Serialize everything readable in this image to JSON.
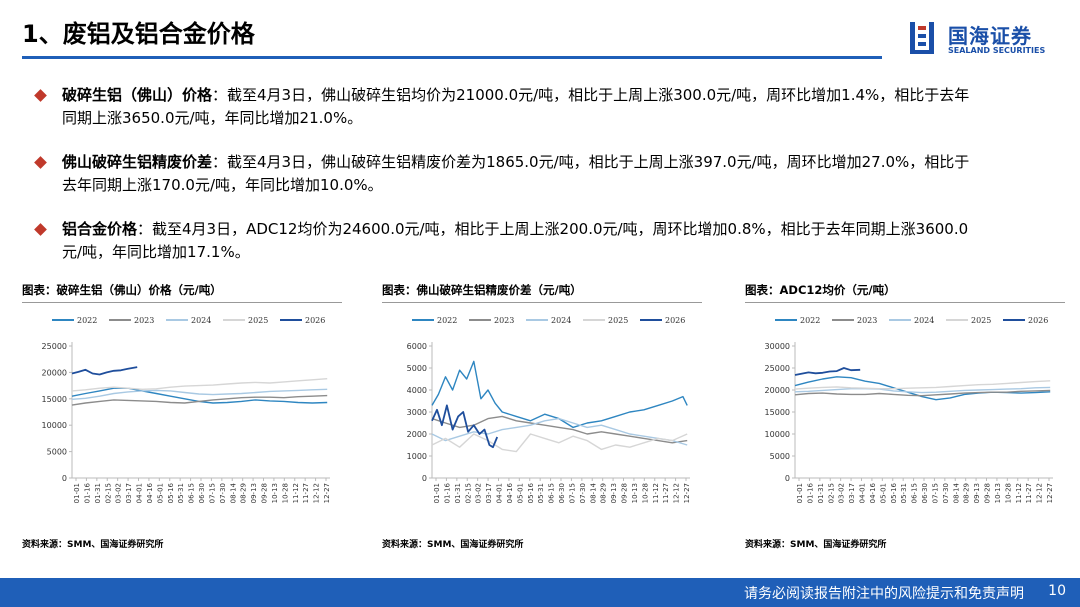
{
  "header": {
    "title": "1、废铝及铝合金价格"
  },
  "logo": {
    "cn": "国海证券",
    "en": "SEALAND SECURITIES"
  },
  "bullets": [
    {
      "head": "破碎生铝（佛山）价格",
      "text": "：截至4月3日，佛山破碎生铝均价为21000.0元/吨，相比于上周上涨300.0元/吨，周环比增加1.4%，相比于去年同期上涨3650.0元/吨，年同比增加21.0%。"
    },
    {
      "head": "佛山破碎生铝精废价差",
      "text": "：截至4月3日，佛山破碎生铝精废价差为1865.0元/吨，相比于上周上涨397.0元/吨，周环比增加27.0%，相比于去年同期上涨170.0元/吨，年同比增加10.0%。"
    },
    {
      "head": "铝合金价格",
      "text": "：截至4月3日，ADC12均价为24600.0元/吨，相比于上周上涨200.0元/吨，周环比增加0.8%，相比于去年同期上涨3600.0元/吨，年同比增加17.1%。"
    }
  ],
  "footer": {
    "text": "请务必阅读报告附注中的风险提示和免责声明",
    "page": "10"
  },
  "colors": {
    "2022": "#2e86c1",
    "2023": "#8c8c8c",
    "2024": "#a9c9e3",
    "2025": "#d6d6d6",
    "2026": "#1f4e9c"
  },
  "chart_data": [
    {
      "type": "line",
      "title": "图表：破碎生铝（佛山）价格（元/吨）",
      "source": "资料来源：SMM、国海证券研究所",
      "ylim": [
        0,
        25000
      ],
      "yticks": [
        "0",
        "5000",
        "10000",
        "15000",
        "20000",
        "25000"
      ],
      "xticks": [
        "01-01",
        "01-16",
        "01-31",
        "02-15",
        "03-02",
        "03-17",
        "04-01",
        "04-16",
        "05-01",
        "05-16",
        "05-31",
        "06-15",
        "06-30",
        "07-15",
        "07-30",
        "08-14",
        "08-29",
        "09-13",
        "09-28",
        "10-13",
        "10-28",
        "11-12",
        "11-27",
        "12-12",
        "12-27"
      ],
      "legend": [
        "2022",
        "2023",
        "2024",
        "2025",
        "2026"
      ],
      "legend_position": "top",
      "series": [
        {
          "name": "2022",
          "x": [
            1,
            20,
            40,
            60,
            80,
            100,
            120,
            140,
            160,
            180,
            200,
            220,
            240,
            260,
            280,
            300,
            320,
            340,
            361
          ],
          "y": [
            15500,
            16000,
            16500,
            17000,
            17000,
            16500,
            16000,
            15500,
            15000,
            14500,
            14200,
            14300,
            14500,
            14800,
            14600,
            14500,
            14300,
            14200,
            14300
          ]
        },
        {
          "name": "2023",
          "x": [
            1,
            20,
            40,
            60,
            80,
            100,
            120,
            140,
            160,
            180,
            200,
            220,
            240,
            260,
            280,
            300,
            320,
            340,
            361
          ],
          "y": [
            13800,
            14200,
            14500,
            14800,
            14700,
            14600,
            14500,
            14300,
            14200,
            14500,
            14800,
            15000,
            15200,
            15300,
            15300,
            15200,
            15400,
            15500,
            15600
          ]
        },
        {
          "name": "2024",
          "x": [
            1,
            20,
            40,
            60,
            80,
            100,
            120,
            140,
            160,
            180,
            200,
            220,
            240,
            260,
            280,
            300,
            320,
            340,
            361
          ],
          "y": [
            14900,
            15100,
            15500,
            16000,
            16300,
            16500,
            16600,
            16500,
            16200,
            15900,
            15800,
            15900,
            16000,
            16200,
            16400,
            16500,
            16600,
            16700,
            16800
          ]
        },
        {
          "name": "2025",
          "x": [
            1,
            20,
            40,
            60,
            80,
            100,
            120,
            140,
            160,
            180,
            200,
            220,
            240,
            260,
            280,
            300,
            320,
            340,
            361
          ],
          "y": [
            16500,
            16700,
            17000,
            17200,
            17000,
            16800,
            16900,
            17200,
            17400,
            17500,
            17600,
            17800,
            18000,
            18100,
            18000,
            18200,
            18400,
            18600,
            18800
          ]
        },
        {
          "name": "2026",
          "x": [
            1,
            10,
            20,
            30,
            40,
            50,
            60,
            70,
            80,
            93
          ],
          "y": [
            19800,
            20100,
            20500,
            19800,
            19600,
            20000,
            20300,
            20400,
            20700,
            21000
          ]
        }
      ]
    },
    {
      "type": "line",
      "title": "图表：佛山破碎生铝精废价差（元/吨）",
      "source": "资料来源：SMM、国海证券研究所",
      "ylim": [
        0,
        6000
      ],
      "yticks": [
        "0",
        "1000",
        "2000",
        "3000",
        "4000",
        "5000",
        "6000"
      ],
      "xticks": [
        "01-01",
        "01-16",
        "01-31",
        "02-15",
        "03-02",
        "03-17",
        "04-01",
        "04-16",
        "05-01",
        "05-16",
        "05-31",
        "06-15",
        "06-30",
        "07-15",
        "07-30",
        "08-14",
        "08-29",
        "09-13",
        "09-28",
        "10-13",
        "10-28",
        "11-12",
        "11-27",
        "12-12",
        "12-27"
      ],
      "legend": [
        "2022",
        "2023",
        "2024",
        "2025",
        "2026"
      ],
      "legend_position": "top",
      "series": [
        {
          "name": "2022",
          "x": [
            1,
            10,
            20,
            30,
            40,
            50,
            60,
            70,
            80,
            90,
            100,
            120,
            140,
            160,
            180,
            200,
            220,
            240,
            260,
            280,
            300,
            320,
            340,
            355,
            361
          ],
          "y": [
            3300,
            3800,
            4600,
            4000,
            4900,
            4500,
            5300,
            3600,
            4000,
            3400,
            3000,
            2800,
            2600,
            2900,
            2700,
            2300,
            2500,
            2600,
            2800,
            3000,
            3100,
            3300,
            3500,
            3700,
            3300
          ]
        },
        {
          "name": "2023",
          "x": [
            1,
            20,
            40,
            60,
            80,
            100,
            120,
            140,
            160,
            180,
            200,
            220,
            240,
            260,
            280,
            300,
            320,
            340,
            361
          ],
          "y": [
            2700,
            2500,
            2300,
            2400,
            2700,
            2800,
            2600,
            2500,
            2400,
            2300,
            2200,
            2000,
            2100,
            2000,
            1900,
            1800,
            1700,
            1600,
            1700
          ]
        },
        {
          "name": "2024",
          "x": [
            1,
            20,
            40,
            60,
            80,
            100,
            120,
            140,
            160,
            180,
            200,
            220,
            240,
            260,
            280,
            300,
            320,
            340,
            361
          ],
          "y": [
            2000,
            1700,
            1900,
            2100,
            2000,
            2200,
            2300,
            2400,
            2600,
            2700,
            2500,
            2300,
            2400,
            2200,
            2000,
            1900,
            1800,
            1700,
            1500
          ]
        },
        {
          "name": "2025",
          "x": [
            1,
            20,
            40,
            60,
            80,
            100,
            120,
            140,
            160,
            180,
            200,
            220,
            240,
            260,
            280,
            300,
            320,
            340,
            361
          ],
          "y": [
            1500,
            1800,
            1400,
            2000,
            1700,
            1300,
            1200,
            2000,
            1800,
            1600,
            1900,
            1700,
            1300,
            1500,
            1400,
            1600,
            1800,
            1700,
            2000
          ]
        },
        {
          "name": "2026",
          "x": [
            1,
            8,
            15,
            22,
            30,
            38,
            45,
            52,
            60,
            68,
            75,
            82,
            87,
            93
          ],
          "y": [
            2600,
            3100,
            2400,
            3300,
            2200,
            2800,
            3000,
            2100,
            2400,
            2000,
            2200,
            1500,
            1400,
            1865
          ]
        }
      ]
    },
    {
      "type": "line",
      "title": "图表：ADC12均价（元/吨）",
      "source": "资料来源：SMM、国海证券研究所",
      "ylim": [
        0,
        30000
      ],
      "yticks": [
        "0",
        "5000",
        "10000",
        "15000",
        "20000",
        "25000",
        "30000"
      ],
      "xticks": [
        "01-01",
        "01-16",
        "01-31",
        "02-15",
        "03-02",
        "03-17",
        "04-01",
        "04-16",
        "05-01",
        "05-16",
        "05-31",
        "06-15",
        "06-30",
        "07-15",
        "07-30",
        "08-14",
        "08-29",
        "09-13",
        "09-28",
        "10-13",
        "10-28",
        "11-12",
        "11-27",
        "12-12",
        "12-27"
      ],
      "legend": [
        "2022",
        "2023",
        "2024",
        "2025",
        "2026"
      ],
      "legend_position": "top",
      "series": [
        {
          "name": "2022",
          "x": [
            1,
            20,
            40,
            60,
            80,
            100,
            120,
            140,
            160,
            180,
            200,
            220,
            240,
            260,
            280,
            300,
            320,
            340,
            361
          ],
          "y": [
            21000,
            21800,
            22500,
            23000,
            22800,
            22000,
            21500,
            20500,
            19500,
            18500,
            17800,
            18200,
            19000,
            19300,
            19500,
            19400,
            19300,
            19400,
            19600
          ]
        },
        {
          "name": "2023",
          "x": [
            1,
            20,
            40,
            60,
            80,
            100,
            120,
            140,
            160,
            180,
            200,
            220,
            240,
            260,
            280,
            300,
            320,
            340,
            361
          ],
          "y": [
            18900,
            19200,
            19300,
            19100,
            19000,
            19000,
            19200,
            19000,
            18800,
            18700,
            18900,
            19100,
            19300,
            19400,
            19500,
            19500,
            19700,
            19800,
            19900
          ]
        },
        {
          "name": "2024",
          "x": [
            1,
            20,
            40,
            60,
            80,
            100,
            120,
            140,
            160,
            180,
            200,
            220,
            240,
            260,
            280,
            300,
            320,
            340,
            361
          ],
          "y": [
            19600,
            19700,
            19900,
            20100,
            20300,
            20300,
            20200,
            19800,
            19600,
            19400,
            19500,
            19700,
            19900,
            20000,
            20100,
            20200,
            20300,
            20500,
            20600
          ]
        },
        {
          "name": "2025",
          "x": [
            1,
            20,
            40,
            60,
            80,
            100,
            120,
            140,
            160,
            180,
            200,
            220,
            240,
            260,
            280,
            300,
            320,
            340,
            361
          ],
          "y": [
            20200,
            20400,
            20600,
            20700,
            20500,
            20400,
            20300,
            20300,
            20400,
            20500,
            20600,
            20800,
            21000,
            21200,
            21300,
            21500,
            21700,
            21900,
            22100
          ]
        },
        {
          "name": "2026",
          "x": [
            1,
            10,
            20,
            30,
            40,
            50,
            60,
            70,
            80,
            93
          ],
          "y": [
            23400,
            23700,
            24000,
            23800,
            23900,
            24200,
            24300,
            25000,
            24500,
            24600
          ]
        }
      ]
    }
  ]
}
